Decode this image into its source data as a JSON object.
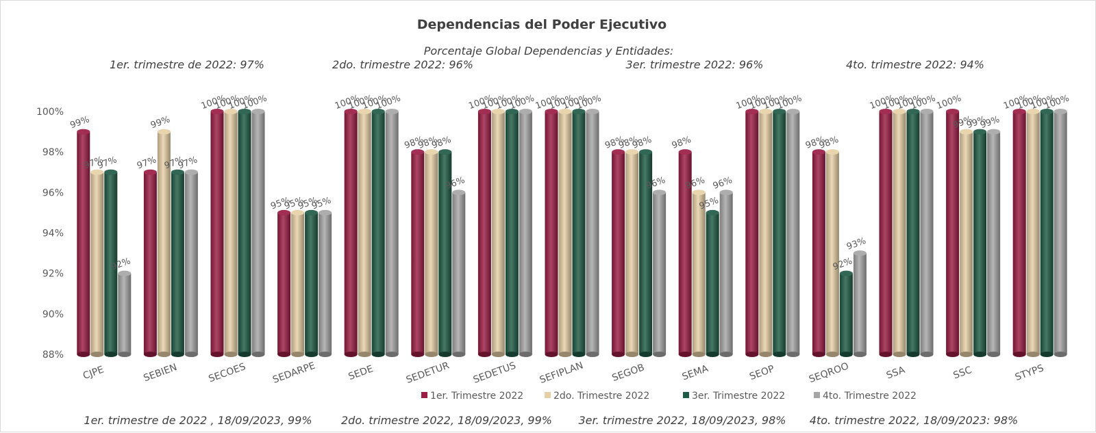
{
  "chart_data": {
    "type": "bar",
    "title": "Dependencias del Poder Ejecutivo",
    "subtitle": "Porcentaje Global  Dependencias y Entidades:",
    "quarter_notes": [
      "1er. trimestre de 2022: 97%",
      "2do. trimestre 2022: 96%",
      "3er. trimestre 2022: 96%",
      "4to. trimestre 2022: 94%"
    ],
    "footer_notes": [
      "1er. trimestre de 2022 , 18/09/2023, 99%",
      "2do. trimestre 2022, 18/09/2023, 99%",
      "3er. trimestre 2022, 18/09/2023, 98%",
      "4to. trimestre 2022, 18/09/2023: 98%"
    ],
    "categories": [
      "CJPE",
      "SEBIEN",
      "SECOES",
      "SEDARPE",
      "SEDE",
      "SEDETUR",
      "SEDETUS",
      "SEFIPLAN",
      "SEGOB",
      "SEMA",
      "SEOP",
      "SEQROO",
      "SSA",
      "SSC",
      "STYPS"
    ],
    "series": [
      {
        "name": "1er. Trimestre 2022",
        "color": "#9b1c45",
        "values": [
          99,
          97,
          100,
          95,
          100,
          98,
          100,
          100,
          98,
          98,
          100,
          98,
          100,
          100,
          100
        ]
      },
      {
        "name": "2do. Trimestre 2022",
        "color": "#e6d0a6",
        "values": [
          97,
          99,
          100,
          95,
          100,
          98,
          100,
          100,
          98,
          96,
          100,
          98,
          100,
          99,
          100
        ]
      },
      {
        "name": "3er. Trimestre 2022",
        "color": "#1f5a45",
        "values": [
          97,
          97,
          100,
          95,
          100,
          98,
          100,
          100,
          98,
          95,
          100,
          92,
          100,
          99,
          100
        ]
      },
      {
        "name": "4to. Trimestre 2022",
        "color": "#a6a6a6",
        "values": [
          92,
          97,
          100,
          95,
          100,
          96,
          100,
          100,
          96,
          96,
          100,
          93,
          100,
          99,
          100
        ]
      }
    ],
    "y_ticks": [
      "88%",
      "90%",
      "92%",
      "94%",
      "96%",
      "98%",
      "100%"
    ],
    "ylim": [
      88,
      100
    ],
    "grid": false,
    "legend_position": "bottom"
  }
}
